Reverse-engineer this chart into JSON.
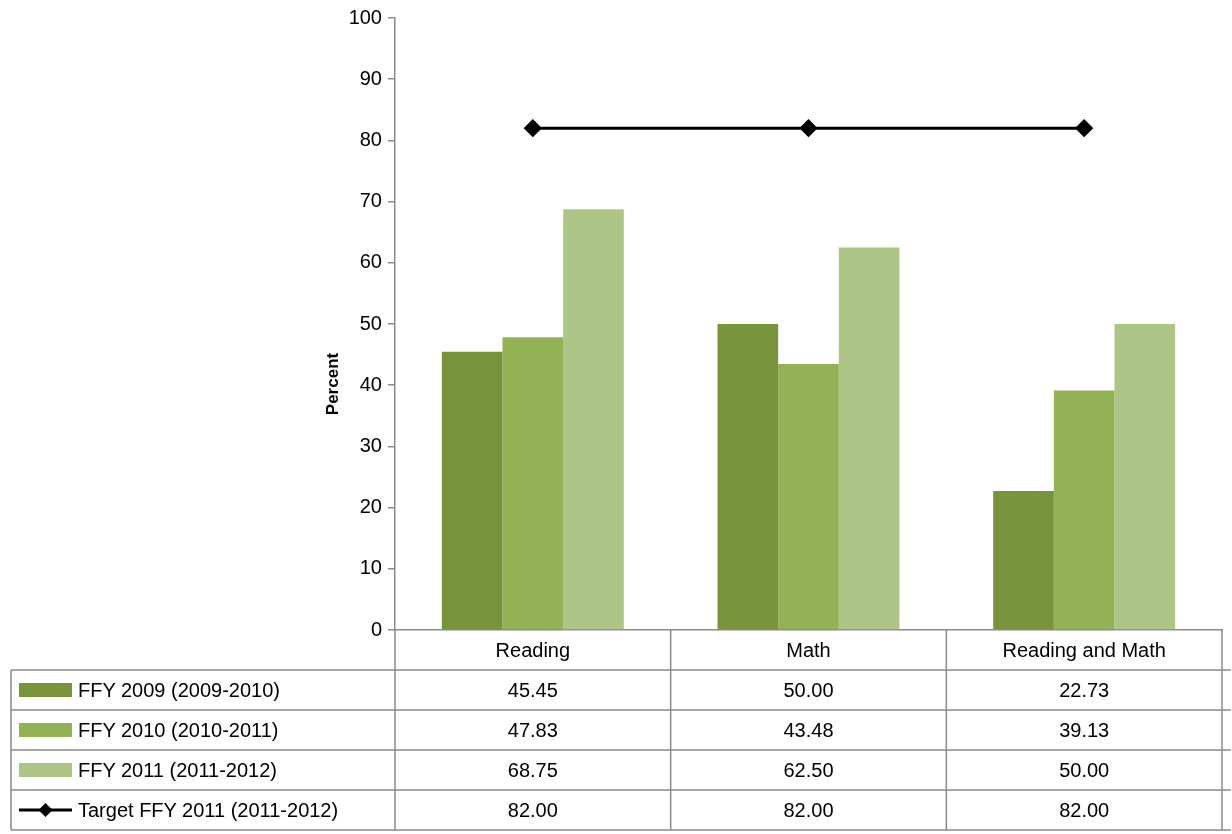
{
  "chart_data": {
    "type": "bar",
    "ylabel": "Percent",
    "categories": [
      "Reading",
      "Math",
      "Reading and Math"
    ],
    "series": [
      {
        "name": "FFY 2009 (2009-2010)",
        "color": "#77933c",
        "values": [
          45.45,
          50.0,
          22.73
        ],
        "value_labels": [
          "45.45",
          "50.00",
          "22.73"
        ]
      },
      {
        "name": "FFY 2010 (2010-2011)",
        "color": "#93b155",
        "values": [
          47.83,
          43.48,
          39.13
        ],
        "value_labels": [
          "47.83",
          "43.48",
          "39.13"
        ]
      },
      {
        "name": "FFY 2011 (2011-2012)",
        "color": "#adc688",
        "values": [
          68.75,
          62.5,
          50.0
        ],
        "value_labels": [
          "68.75",
          "62.50",
          "50.00"
        ]
      },
      {
        "name": "Target FFY 2011 (2011-2012)",
        "type": "line",
        "color": "#000000",
        "values": [
          82,
          82,
          82
        ],
        "value_labels": [
          "82.00",
          "82.00",
          "82.00"
        ]
      }
    ],
    "ylim": [
      0,
      100
    ],
    "yticks": [
      0,
      10,
      20,
      30,
      40,
      50,
      60,
      70,
      80,
      90,
      100
    ],
    "legend": "bottom",
    "marker": "diamond",
    "line_style": "solid"
  }
}
